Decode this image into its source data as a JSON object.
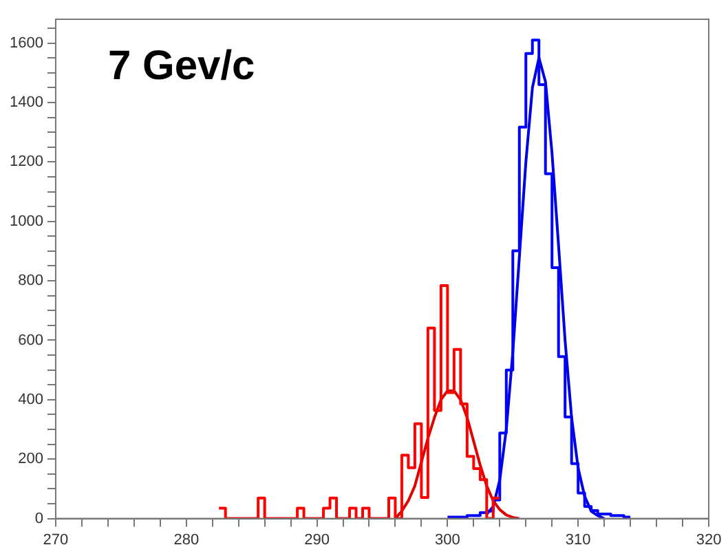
{
  "chart_data": {
    "type": "histogram",
    "annotations": [
      "7 Gev/c"
    ],
    "xlim": [
      270,
      320
    ],
    "ylim": [
      0,
      1680
    ],
    "xticks": [
      270,
      {
        "value": 272,
        "label": null
      },
      {
        "value": 274,
        "label": null
      },
      {
        "value": 276,
        "label": null
      },
      {
        "value": 278,
        "label": null
      },
      280,
      {
        "value": 282,
        "label": null
      },
      {
        "value": 284,
        "label": null
      },
      {
        "value": 286,
        "label": null
      },
      {
        "value": 288,
        "label": null
      },
      290,
      {
        "value": 292,
        "label": null
      },
      {
        "value": 294,
        "label": null
      },
      {
        "value": 296,
        "label": null
      },
      {
        "value": 298,
        "label": null
      },
      300,
      {
        "value": 302,
        "label": null
      },
      {
        "value": 304,
        "label": null
      },
      {
        "value": 306,
        "label": null
      },
      {
        "value": 308,
        "label": null
      },
      310,
      {
        "value": 312,
        "label": null
      },
      {
        "value": 314,
        "label": null
      },
      {
        "value": 316,
        "label": null
      },
      {
        "value": 318,
        "label": null
      },
      320
    ],
    "yticks": [
      0,
      {
        "value": 50,
        "label": null
      },
      {
        "value": 100,
        "label": null
      },
      {
        "value": 150,
        "label": null
      },
      200,
      {
        "value": 250,
        "label": null
      },
      {
        "value": 300,
        "label": null
      },
      {
        "value": 350,
        "label": null
      },
      400,
      {
        "value": 450,
        "label": null
      },
      {
        "value": 500,
        "label": null
      },
      {
        "value": 550,
        "label": null
      },
      600,
      {
        "value": 650,
        "label": null
      },
      {
        "value": 700,
        "label": null
      },
      {
        "value": 750,
        "label": null
      },
      800,
      {
        "value": 850,
        "label": null
      },
      {
        "value": 900,
        "label": null
      },
      {
        "value": 950,
        "label": null
      },
      1000,
      {
        "value": 1050,
        "label": null
      },
      {
        "value": 1100,
        "label": null
      },
      {
        "value": 1150,
        "label": null
      },
      1200,
      {
        "value": 1250,
        "label": null
      },
      {
        "value": 1300,
        "label": null
      },
      {
        "value": 1350,
        "label": null
      },
      1400,
      {
        "value": 1450,
        "label": null
      },
      {
        "value": 1500,
        "label": null
      },
      {
        "value": 1550,
        "label": null
      },
      1600,
      {
        "value": 1650,
        "label": null
      }
    ],
    "grid": false,
    "legend": false,
    "series": [
      {
        "color": "#ff0000",
        "bins": [
          282.5,
          283,
          283.5,
          284,
          284.5,
          285,
          285.5,
          286,
          286.5,
          287,
          287.5,
          288,
          288.5,
          289,
          289.5,
          290,
          290.5,
          291,
          291.5,
          292,
          292.5,
          293,
          293.5,
          294,
          294.5,
          295,
          295.5,
          296,
          296.5,
          297,
          297.5,
          298,
          298.5,
          299,
          299.5,
          300,
          300.5,
          301,
          301.5,
          302,
          302.5,
          303,
          303.5,
          304
        ],
        "values": [
          35,
          0,
          0,
          0,
          0,
          0,
          69,
          0,
          0,
          0,
          0,
          0,
          35,
          0,
          0,
          0,
          35,
          69,
          0,
          0,
          35,
          0,
          35,
          0,
          0,
          0,
          69,
          0,
          213,
          171,
          319,
          71,
          641,
          364,
          784,
          424,
          569,
          386,
          209,
          168,
          131,
          0,
          69
        ]
      },
      {
        "color": "#0000ff",
        "bins": [
          300,
          300.5,
          301,
          301.5,
          302,
          302.5,
          303,
          303.5,
          304,
          304.5,
          305,
          305.5,
          306,
          306.5,
          307,
          307.5,
          308,
          308.5,
          309,
          309.5,
          310,
          310.5,
          311,
          311.5,
          312,
          312.5,
          313,
          313.5,
          314
        ],
        "values": [
          5,
          5,
          5,
          10,
          10,
          20,
          25,
          63,
          288,
          500,
          901,
          1317,
          1565,
          1610,
          1460,
          1160,
          844,
          545,
          342,
          185,
          86,
          41,
          27,
          15,
          15,
          10,
          10,
          5
        ]
      },
      {
        "type": "line",
        "color": "#e00000",
        "x": [
          296,
          296.5,
          297,
          297.5,
          298,
          298.5,
          299,
          299.5,
          300,
          300.5,
          301,
          301.5,
          302,
          302.5,
          303,
          303.5,
          304,
          304.5,
          305,
          305.5
        ],
        "values": [
          0,
          25,
          60,
          110,
          190,
          270,
          340,
          400,
          430,
          430,
          400,
          340,
          260,
          180,
          110,
          60,
          30,
          12,
          4,
          0
        ]
      },
      {
        "type": "line",
        "color": "#0000e0",
        "x": [
          303,
          303.5,
          304,
          304.5,
          305,
          305.5,
          306,
          306.5,
          307,
          307.5,
          308,
          308.5,
          309,
          309.5,
          310,
          310.5,
          311,
          311.5,
          312
        ],
        "values": [
          15,
          40,
          130,
          300,
          560,
          880,
          1200,
          1450,
          1550,
          1470,
          1230,
          920,
          600,
          340,
          170,
          75,
          25,
          10,
          0
        ]
      }
    ]
  }
}
